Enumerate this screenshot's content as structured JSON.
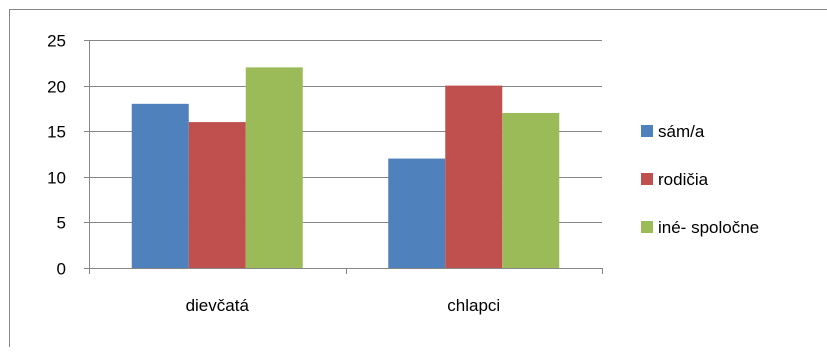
{
  "chart_data": {
    "type": "bar",
    "title": "",
    "xlabel": "",
    "ylabel": "",
    "categories": [
      "dievčatá",
      "chlapci"
    ],
    "series": [
      {
        "name": "sám/a",
        "values": [
          18,
          12
        ],
        "color": "#4F81BD"
      },
      {
        "name": "rodičia",
        "values": [
          16,
          20
        ],
        "color": "#C0504D"
      },
      {
        "name": "iné- spoločne",
        "values": [
          22,
          17
        ],
        "color": "#9BBB59"
      }
    ],
    "ylim": [
      0,
      25
    ],
    "yticks": [
      "0",
      "5",
      "10",
      "15",
      "20",
      "25"
    ],
    "grid": true,
    "legend_position": "right"
  }
}
